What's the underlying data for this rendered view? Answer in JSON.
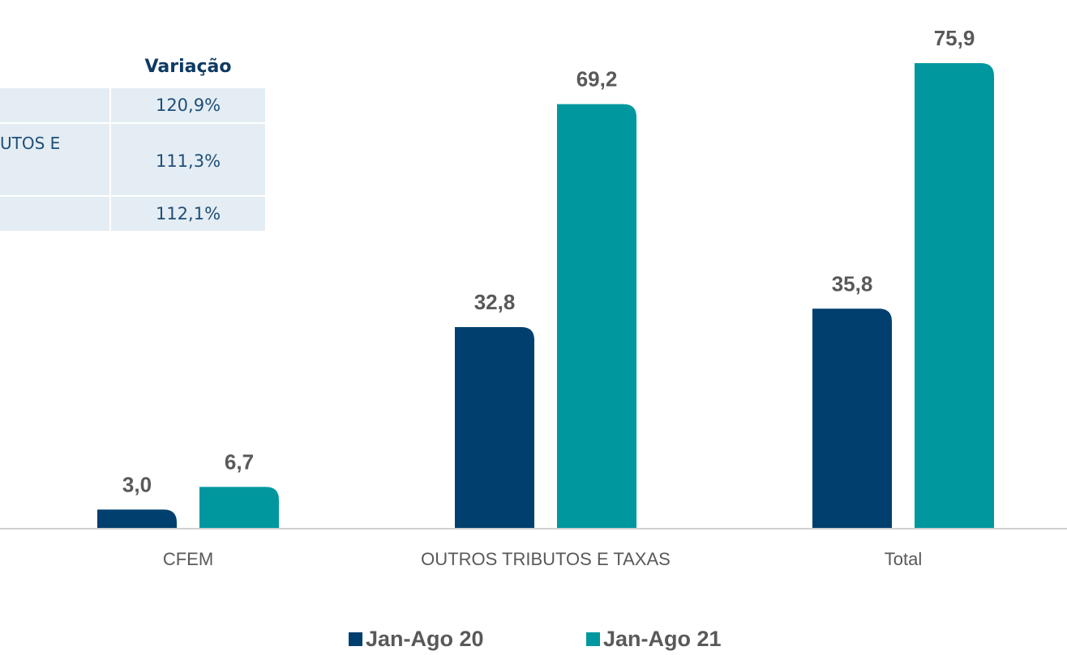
{
  "chart_data": {
    "type": "bar",
    "categories": [
      "CFEM",
      "OUTROS TRIBUTOS E TAXAS",
      "Total"
    ],
    "series": [
      {
        "name": "Jan-Ago 20",
        "color": "#003f6e",
        "values": [
          3.0,
          32.8,
          35.8
        ],
        "value_labels": [
          "3,0",
          "32,8",
          "35,8"
        ]
      },
      {
        "name": "Jan-Ago 21",
        "color": "#00979f",
        "values": [
          6.7,
          69.2,
          75.9
        ],
        "value_labels": [
          "6,7",
          "69,2",
          "75,9"
        ]
      }
    ],
    "ylim": [
      0,
      80
    ]
  },
  "table": {
    "header": "Variação",
    "rows": [
      {
        "value": "120,9%"
      },
      {
        "label": "UTOS E",
        "value": "111,3%"
      },
      {
        "value": "112,1%"
      }
    ]
  }
}
